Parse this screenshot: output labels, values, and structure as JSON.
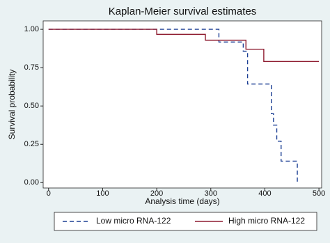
{
  "chart_data": {
    "type": "step",
    "title": "Kaplan-Meier survival estimates",
    "x_label": "Analysis time (days)",
    "y_label": "Survival probability",
    "xlim": [
      -10,
      505
    ],
    "ylim": [
      -0.035,
      1.055
    ],
    "xticks": [
      0,
      100,
      200,
      300,
      400,
      500
    ],
    "yticks": [
      {
        "value": 0,
        "label": "0.00"
      },
      {
        "value": 0.25,
        "label": "0.25"
      },
      {
        "value": 0.5,
        "label": "0.50"
      },
      {
        "value": 0.75,
        "label": "0.75"
      },
      {
        "value": 1,
        "label": "1.00"
      }
    ],
    "grid": false,
    "legend": "bottom",
    "series": [
      {
        "name": "Low micro RNA-122",
        "color": "#1c3f94",
        "dashed": true,
        "x": [
          0,
          315,
          360,
          368,
          412,
          416,
          422,
          430,
          460
        ],
        "values": [
          1,
          0.917,
          0.857,
          0.643,
          0.45,
          0.375,
          0.27,
          0.14,
          0
        ]
      },
      {
        "name": "High micro RNA-122",
        "color": "#8e1c30",
        "dashed": false,
        "x": [
          0,
          200,
          290,
          365,
          398,
          500
        ],
        "values": [
          1,
          0.967,
          0.929,
          0.87,
          0.79,
          0.79
        ]
      }
    ]
  }
}
